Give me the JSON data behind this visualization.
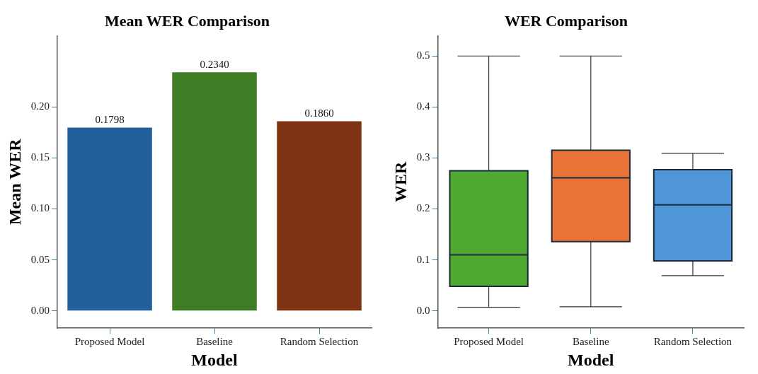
{
  "chart_data": [
    {
      "type": "bar",
      "title": "Mean WER Comparison",
      "xlabel": "Model",
      "ylabel": "Mean WER",
      "categories": [
        "Proposed Model",
        "Baseline",
        "Random Selection"
      ],
      "values": [
        0.1798,
        0.234,
        0.186
      ],
      "value_labels": [
        "0.1798",
        "0.2340",
        "0.1860"
      ],
      "colors": [
        "#22609c",
        "#3e7d24",
        "#7f3312"
      ],
      "ylim": [
        -0.017,
        0.27
      ],
      "yticks": [
        {
          "value": 0,
          "label": "0.00"
        },
        0.05,
        {
          "value": 0.1,
          "label": "0.10"
        },
        0.15,
        {
          "value": 0.2,
          "label": "0.20"
        }
      ],
      "grid": false,
      "legend": false
    },
    {
      "type": "box",
      "title": "WER Comparison",
      "xlabel": "Model",
      "ylabel": "WER",
      "categories": [
        "Proposed Model",
        "Baseline",
        "Random Selection"
      ],
      "boxes": [
        {
          "low": 0.007,
          "q1": 0.048,
          "median": 0.11,
          "q3": 0.275,
          "high": 0.5
        },
        {
          "low": 0.008,
          "q1": 0.136,
          "median": 0.261,
          "q3": 0.315,
          "high": 0.5
        },
        {
          "low": 0.069,
          "q1": 0.098,
          "median": 0.208,
          "q3": 0.277,
          "high": 0.309
        }
      ],
      "colors": [
        "#4fa830",
        "#e97236",
        "#4f96d9"
      ],
      "ylim": [
        -0.034,
        0.54
      ],
      "yticks": [
        {
          "value": 0,
          "label": "0.0"
        },
        0.1,
        0.2,
        0.3,
        0.4,
        0.5
      ],
      "grid": false,
      "legend": false
    }
  ]
}
